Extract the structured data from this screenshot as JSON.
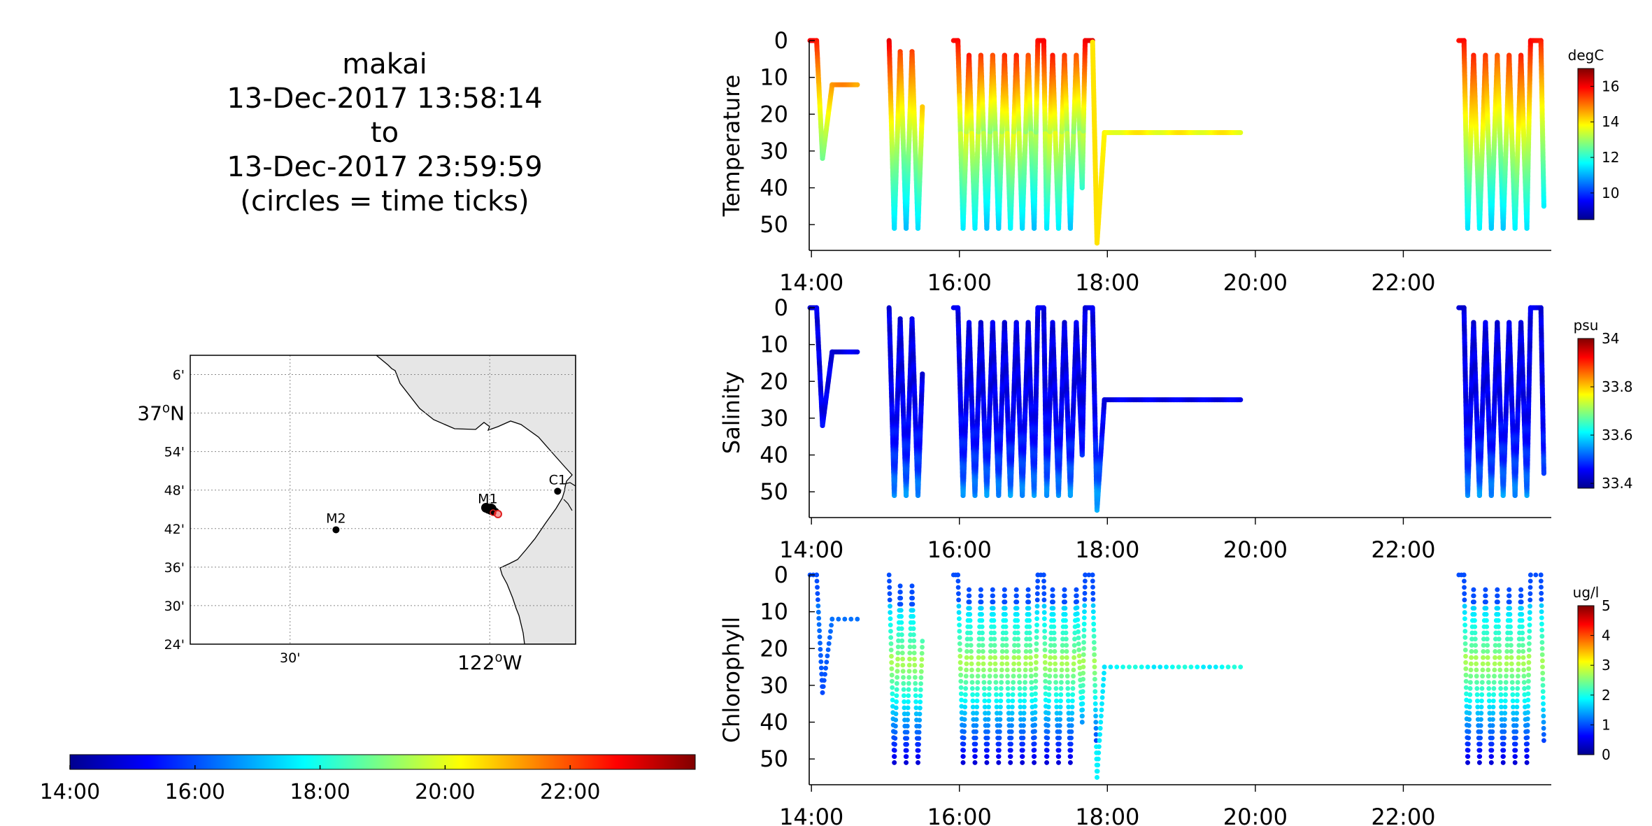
{
  "header": {
    "lines": [
      "makai",
      "13-Dec-2017 13:58:14",
      "to",
      "13-Dec-2017 23:59:59",
      "(circles = time ticks)"
    ]
  },
  "map": {
    "lat_ticks": [
      "6'",
      "37°N",
      "54'",
      "48'",
      "42'",
      "36'",
      "30'",
      "24'"
    ],
    "lat_values": [
      37.1,
      37.0,
      36.9,
      36.8,
      36.7,
      36.6,
      36.5,
      36.4
    ],
    "lon_ticks": [
      "30'",
      "122°W"
    ],
    "lon_values": [
      -122.5,
      -122.0
    ],
    "xlim": [
      -122.75,
      -121.785
    ],
    "ylim": [
      36.4,
      37.15
    ],
    "stations": [
      {
        "name": "M2",
        "lon": -122.385,
        "lat": 36.697
      },
      {
        "name": "M1",
        "lon": -122.005,
        "lat": 36.748
      },
      {
        "name": "C1",
        "lon": -121.83,
        "lat": 36.797
      }
    ]
  },
  "time_colorbar": {
    "ticks": [
      "14:00",
      "16:00",
      "18:00",
      "20:00",
      "22:00"
    ],
    "tick_values": [
      14,
      16,
      18,
      20,
      22
    ],
    "range": [
      14,
      24
    ]
  },
  "chart_data": [
    {
      "type": "scatter",
      "ylabel": "Temperature",
      "units": "degC",
      "clim": [
        8.5,
        17
      ],
      "colorbar_ticks": [
        "16",
        "14",
        "12",
        "10"
      ],
      "colorbar_values": [
        16,
        14,
        12,
        10
      ],
      "x_ticks": [
        "14:00",
        "16:00",
        "18:00",
        "20:00",
        "22:00"
      ],
      "x_tick_values": [
        14,
        16,
        18,
        20,
        22
      ],
      "y_ticks": [
        "0",
        "10",
        "20",
        "30",
        "40",
        "50"
      ],
      "y_tick_values": [
        0,
        10,
        20,
        30,
        40,
        50
      ],
      "xlim": [
        13.97,
        24.0
      ],
      "ylim": [
        57,
        0
      ]
    },
    {
      "type": "scatter",
      "ylabel": "Salinity",
      "units": "psu",
      "clim": [
        33.38,
        34.0
      ],
      "colorbar_ticks": [
        "34",
        "33.8",
        "33.6",
        "33.4"
      ],
      "colorbar_values": [
        34,
        33.8,
        33.6,
        33.4
      ],
      "x_ticks": [
        "14:00",
        "16:00",
        "18:00",
        "20:00",
        "22:00"
      ],
      "x_tick_values": [
        14,
        16,
        18,
        20,
        22
      ],
      "y_ticks": [
        "0",
        "10",
        "20",
        "30",
        "40",
        "50"
      ],
      "y_tick_values": [
        0,
        10,
        20,
        30,
        40,
        50
      ],
      "xlim": [
        13.97,
        24.0
      ],
      "ylim": [
        57,
        0
      ]
    },
    {
      "type": "scatter",
      "ylabel": "Chlorophyll",
      "units": "ug/l",
      "clim": [
        0,
        5
      ],
      "colorbar_ticks": [
        "5",
        "4",
        "3",
        "2",
        "1",
        "0"
      ],
      "colorbar_values": [
        5,
        4,
        3,
        2,
        1,
        0
      ],
      "x_ticks": [
        "14:00",
        "16:00",
        "18:00",
        "20:00",
        "22:00"
      ],
      "x_tick_values": [
        14,
        16,
        18,
        20,
        22
      ],
      "y_ticks": [
        "0",
        "10",
        "20",
        "30",
        "40",
        "50"
      ],
      "y_tick_values": [
        0,
        10,
        20,
        30,
        40,
        50
      ],
      "xlim": [
        13.97,
        24.0
      ],
      "ylim": [
        57,
        0
      ]
    }
  ],
  "track": {
    "segments": [
      [
        [
          13.98,
          0
        ],
        [
          14.07,
          0
        ],
        [
          14.15,
          32
        ],
        [
          14.28,
          12
        ],
        [
          14.62,
          12
        ]
      ],
      [
        [
          15.05,
          0
        ],
        [
          15.12,
          51
        ],
        [
          15.2,
          3
        ],
        [
          15.28,
          51
        ],
        [
          15.36,
          3
        ],
        [
          15.44,
          51
        ],
        [
          15.5,
          18
        ]
      ],
      [
        [
          15.92,
          0
        ],
        [
          15.98,
          0
        ],
        [
          16.05,
          51
        ],
        [
          16.13,
          4
        ],
        [
          16.21,
          51
        ],
        [
          16.29,
          4
        ],
        [
          16.37,
          51
        ],
        [
          16.45,
          4
        ],
        [
          16.53,
          51
        ],
        [
          16.61,
          4
        ],
        [
          16.69,
          51
        ],
        [
          16.77,
          4
        ],
        [
          16.85,
          51
        ],
        [
          16.93,
          4
        ],
        [
          17.01,
          51
        ],
        [
          17.06,
          0
        ],
        [
          17.14,
          0
        ],
        [
          17.18,
          51
        ],
        [
          17.26,
          4
        ],
        [
          17.34,
          51
        ],
        [
          17.42,
          4
        ],
        [
          17.5,
          51
        ],
        [
          17.58,
          4
        ],
        [
          17.66,
          40
        ],
        [
          17.7,
          0
        ],
        [
          17.8,
          0
        ],
        [
          17.86,
          55
        ],
        [
          17.96,
          25
        ],
        [
          19.8,
          25
        ]
      ],
      [
        [
          22.75,
          0
        ],
        [
          22.82,
          0
        ],
        [
          22.87,
          51
        ],
        [
          22.95,
          4
        ],
        [
          23.03,
          51
        ],
        [
          23.11,
          4
        ],
        [
          23.19,
          51
        ],
        [
          23.27,
          4
        ],
        [
          23.35,
          51
        ],
        [
          23.43,
          4
        ],
        [
          23.51,
          51
        ],
        [
          23.59,
          4
        ],
        [
          23.67,
          51
        ],
        [
          23.72,
          0
        ],
        [
          23.86,
          0
        ],
        [
          23.9,
          45
        ]
      ]
    ]
  }
}
